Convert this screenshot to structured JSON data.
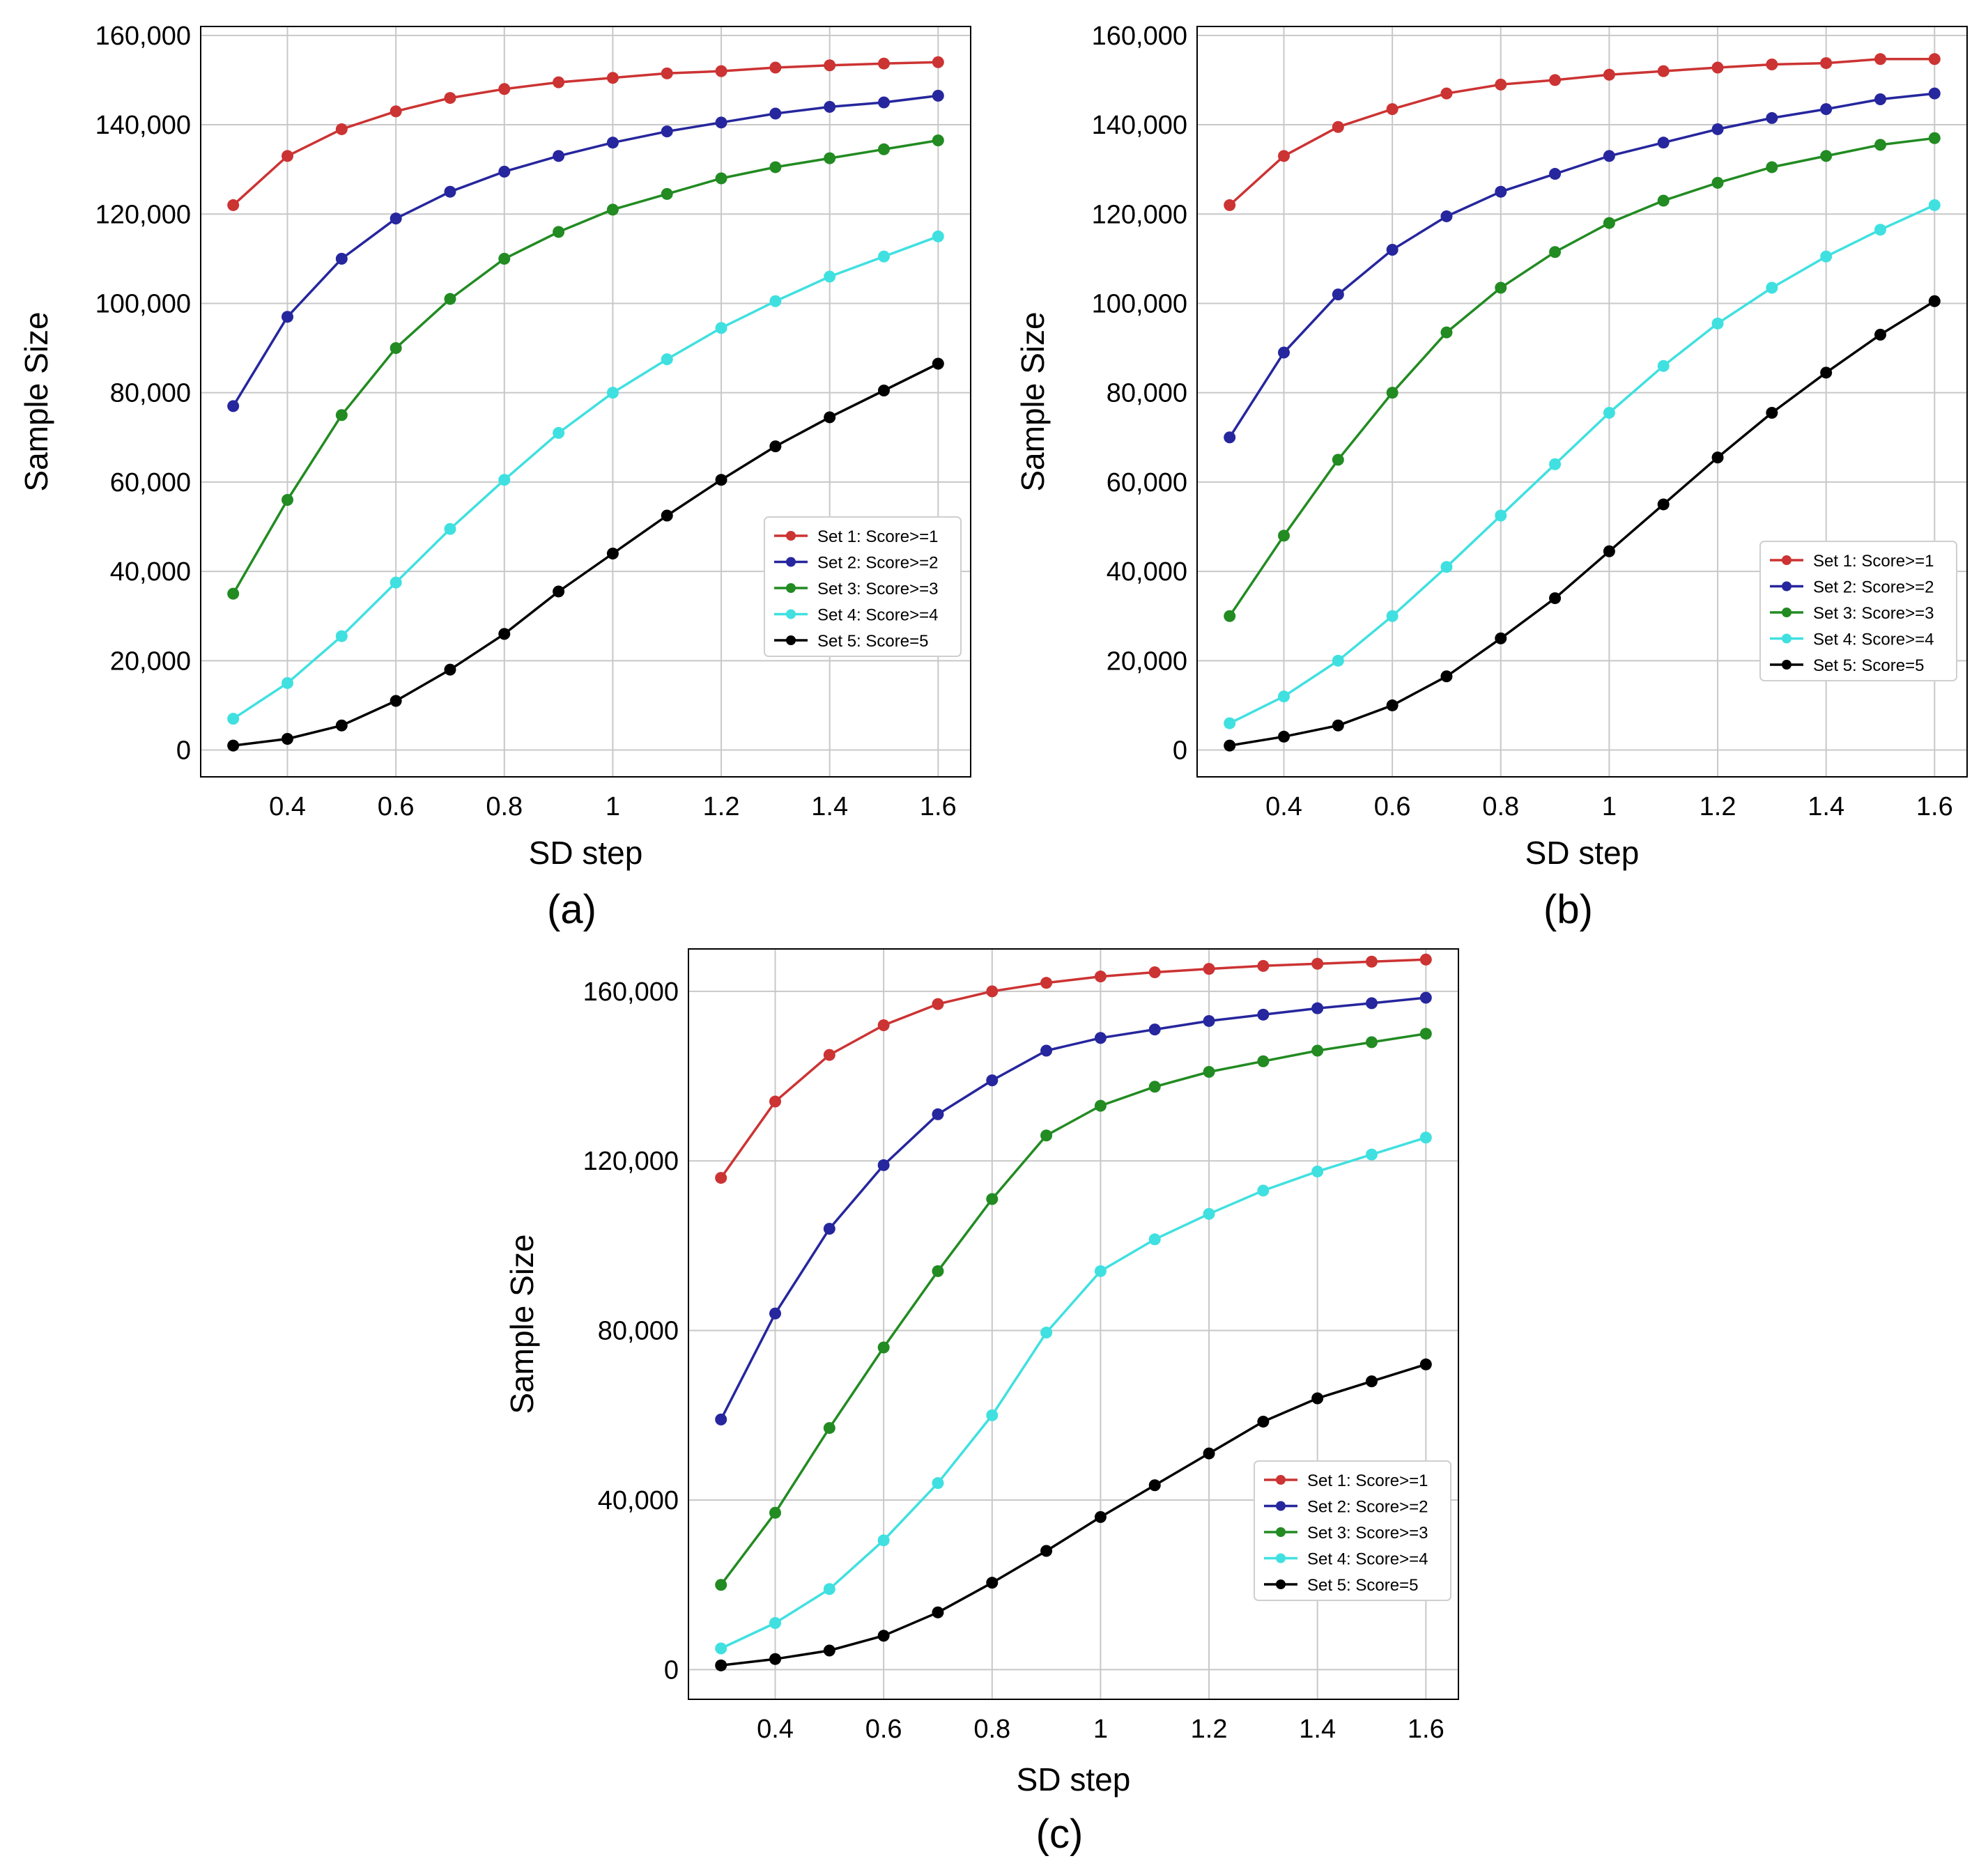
{
  "chart_data": [
    {
      "type": "line",
      "panel_label": "(a)",
      "xlabel": "SD step",
      "ylabel": "Sample Size",
      "xlim": [
        0.24,
        1.66
      ],
      "ylim": [
        -6000,
        162000
      ],
      "x_ticks": [
        0.4,
        0.6,
        0.8,
        1.0,
        1.2,
        1.4,
        1.6
      ],
      "x_tick_labels": [
        "0.4",
        "0.6",
        "0.8",
        "1",
        "1.2",
        "1.4",
        "1.6"
      ],
      "y_ticks": [
        0,
        20000,
        40000,
        60000,
        80000,
        100000,
        120000,
        140000,
        160000
      ],
      "y_tick_labels": [
        "0",
        "20,000",
        "40,000",
        "60,000",
        "80,000",
        "100,000",
        "120,000",
        "140,000",
        "160,000"
      ],
      "grid": true,
      "legend_position": "lower-right",
      "x": [
        0.3,
        0.4,
        0.5,
        0.6,
        0.7,
        0.8,
        0.9,
        1.0,
        1.1,
        1.2,
        1.3,
        1.4,
        1.5,
        1.6
      ],
      "series": [
        {
          "name": "Set 1: Score>=1",
          "color": "#cc3333",
          "values": [
            122000,
            133000,
            139000,
            143000,
            146000,
            148000,
            149500,
            150500,
            151500,
            152000,
            152800,
            153300,
            153700,
            154000
          ]
        },
        {
          "name": "Set 2: Score>=2",
          "color": "#26269e",
          "values": [
            77000,
            97000,
            110000,
            119000,
            125000,
            129500,
            133000,
            136000,
            138500,
            140500,
            142500,
            144000,
            145000,
            146500
          ]
        },
        {
          "name": "Set 3: Score>=3",
          "color": "#228b22",
          "values": [
            35000,
            56000,
            75000,
            90000,
            101000,
            110000,
            116000,
            121000,
            124500,
            128000,
            130500,
            132500,
            134500,
            136500
          ]
        },
        {
          "name": "Set 4: Score>=4",
          "color": "#40e0e0",
          "values": [
            7000,
            15000,
            25500,
            37500,
            49500,
            60500,
            71000,
            80000,
            87500,
            94500,
            100500,
            106000,
            110500,
            115000
          ]
        },
        {
          "name": "Set 5: Score=5",
          "color": "#000000",
          "values": [
            1000,
            2500,
            5500,
            11000,
            18000,
            26000,
            35500,
            44000,
            52500,
            60500,
            68000,
            74500,
            80500,
            86500
          ]
        }
      ]
    },
    {
      "type": "line",
      "panel_label": "(b)",
      "xlabel": "SD step",
      "ylabel": "Sample Size",
      "xlim": [
        0.24,
        1.66
      ],
      "ylim": [
        -6000,
        162000
      ],
      "x_ticks": [
        0.4,
        0.6,
        0.8,
        1.0,
        1.2,
        1.4,
        1.6
      ],
      "x_tick_labels": [
        "0.4",
        "0.6",
        "0.8",
        "1",
        "1.2",
        "1.4",
        "1.6"
      ],
      "y_ticks": [
        0,
        20000,
        40000,
        60000,
        80000,
        100000,
        120000,
        140000,
        160000
      ],
      "y_tick_labels": [
        "0",
        "20,000",
        "40,000",
        "60,000",
        "80,000",
        "100,000",
        "120,000",
        "140,000",
        "160,000"
      ],
      "grid": true,
      "legend_position": "lower-right",
      "x": [
        0.3,
        0.4,
        0.5,
        0.6,
        0.7,
        0.8,
        0.9,
        1.0,
        1.1,
        1.2,
        1.3,
        1.4,
        1.5,
        1.6
      ],
      "series": [
        {
          "name": "Set 1: Score>=1",
          "color": "#cc3333",
          "values": [
            122000,
            133000,
            139500,
            143500,
            147000,
            149000,
            150000,
            151200,
            152000,
            152800,
            153500,
            153800,
            154700,
            154700
          ]
        },
        {
          "name": "Set 2: Score>=2",
          "color": "#26269e",
          "values": [
            70000,
            89000,
            102000,
            112000,
            119500,
            125000,
            129000,
            133000,
            136000,
            139000,
            141500,
            143500,
            145700,
            147000
          ]
        },
        {
          "name": "Set 3: Score>=3",
          "color": "#228b22",
          "values": [
            30000,
            48000,
            65000,
            80000,
            93500,
            103500,
            111500,
            118000,
            123000,
            127000,
            130500,
            133000,
            135500,
            137000
          ]
        },
        {
          "name": "Set 4: Score>=4",
          "color": "#40e0e0",
          "values": [
            6000,
            12000,
            20000,
            30000,
            41000,
            52500,
            64000,
            75500,
            86000,
            95500,
            103500,
            110500,
            116500,
            122000
          ]
        },
        {
          "name": "Set 5: Score=5",
          "color": "#000000",
          "values": [
            1000,
            3000,
            5500,
            10000,
            16500,
            25000,
            34000,
            44500,
            55000,
            65500,
            75500,
            84500,
            93000,
            100500
          ]
        }
      ]
    },
    {
      "type": "line",
      "panel_label": "(c)",
      "xlabel": "SD step",
      "ylabel": "Sample Size",
      "xlim": [
        0.24,
        1.66
      ],
      "ylim": [
        -7000,
        170000
      ],
      "x_ticks": [
        0.4,
        0.6,
        0.8,
        1.0,
        1.2,
        1.4,
        1.6
      ],
      "x_tick_labels": [
        "0.4",
        "0.6",
        "0.8",
        "1",
        "1.2",
        "1.4",
        "1.6"
      ],
      "y_ticks": [
        0,
        40000,
        80000,
        120000,
        160000
      ],
      "y_tick_labels": [
        "0",
        "40,000",
        "80,000",
        "120,000",
        "160,000"
      ],
      "grid": true,
      "legend_position": "lower-right",
      "x": [
        0.3,
        0.4,
        0.5,
        0.6,
        0.7,
        0.8,
        0.9,
        1.0,
        1.1,
        1.2,
        1.3,
        1.4,
        1.5,
        1.6
      ],
      "series": [
        {
          "name": "Set 1: Score>=1",
          "color": "#cc3333",
          "values": [
            116000,
            134000,
            145000,
            152000,
            157000,
            160000,
            162000,
            163500,
            164500,
            165300,
            166000,
            166500,
            167000,
            167500
          ]
        },
        {
          "name": "Set 2: Score>=2",
          "color": "#26269e",
          "values": [
            59000,
            84000,
            104000,
            119000,
            131000,
            139000,
            146000,
            149000,
            151000,
            153000,
            154500,
            156000,
            157200,
            158500
          ]
        },
        {
          "name": "Set 3: Score>=3",
          "color": "#228b22",
          "values": [
            20000,
            37000,
            57000,
            76000,
            94000,
            111000,
            126000,
            133000,
            137500,
            141000,
            143500,
            146000,
            148000,
            150000
          ]
        },
        {
          "name": "Set 4: Score>=4",
          "color": "#40e0e0",
          "values": [
            5000,
            11000,
            19000,
            30500,
            44000,
            60000,
            79500,
            94000,
            101500,
            107500,
            113000,
            117500,
            121500,
            125500
          ]
        },
        {
          "name": "Set 5: Score=5",
          "color": "#000000",
          "values": [
            1000,
            2500,
            4500,
            8000,
            13500,
            20500,
            28000,
            36000,
            43500,
            51000,
            58500,
            64000,
            68000,
            72000
          ]
        }
      ]
    }
  ]
}
